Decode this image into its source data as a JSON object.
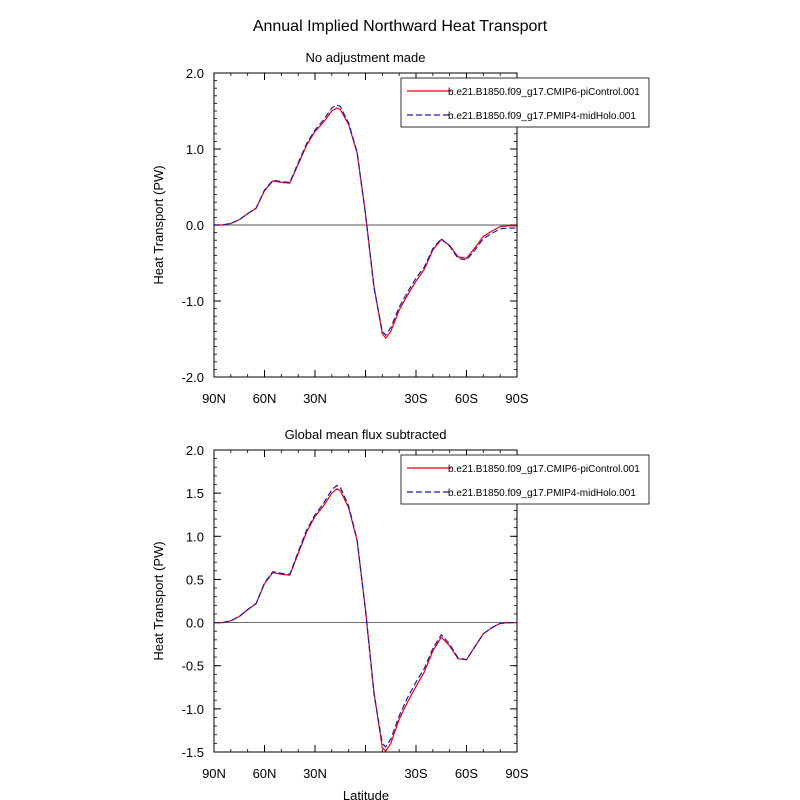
{
  "figure": {
    "title": "Annual Implied Northward Heat Transport",
    "series_colors": {
      "picontrol": "#e8000b",
      "midholo": "#1a1ab3"
    },
    "latitude_axis_label": "Latitude"
  },
  "chart_data": [
    {
      "type": "line",
      "title": "No adjustment made",
      "xlabel": "",
      "ylabel": "Heat Transport (PW)",
      "xlim": [
        90,
        -90
      ],
      "ylim": [
        -2.0,
        2.0
      ],
      "yticks": [
        -2.0,
        -1.0,
        0.0,
        1.0,
        2.0
      ],
      "ytick_labels": [
        "-2.0",
        "-1.0",
        "0.0",
        "1.0",
        "2.0"
      ],
      "xticks": [
        90,
        60,
        30,
        0,
        -30,
        -60,
        -90
      ],
      "xtick_labels": [
        "90N",
        "60N",
        "30N",
        "",
        "30S",
        "60S",
        "90S"
      ],
      "reference_line": 0,
      "legend_position": "top-right",
      "x": [
        90,
        85,
        80,
        75,
        70,
        65,
        60,
        55,
        50,
        45,
        40,
        35,
        30,
        25,
        20,
        17,
        15,
        10,
        5,
        0,
        -5,
        -10,
        -12,
        -15,
        -20,
        -25,
        -30,
        -35,
        -40,
        -45,
        -50,
        -55,
        -60,
        -65,
        -70,
        -75,
        -80,
        -85,
        -90
      ],
      "series": [
        {
          "name": "b.e21.B1850.f09_g17.CMIP6-piControl.001",
          "color": "#e8000b",
          "dash": "solid",
          "values": [
            0.0,
            0.0,
            0.02,
            0.07,
            0.15,
            0.22,
            0.45,
            0.58,
            0.56,
            0.55,
            0.8,
            1.05,
            1.23,
            1.35,
            1.5,
            1.54,
            1.52,
            1.32,
            0.95,
            0.15,
            -0.8,
            -1.43,
            -1.49,
            -1.4,
            -1.12,
            -0.92,
            -0.74,
            -0.58,
            -0.33,
            -0.19,
            -0.27,
            -0.42,
            -0.44,
            -0.3,
            -0.15,
            -0.08,
            -0.02,
            -0.01,
            -0.01
          ]
        },
        {
          "name": "b.e21.B1850.f09_g17.PMIP4-midHolo.001",
          "color": "#1a1ab3",
          "dash": "dashed",
          "values": [
            0.0,
            0.0,
            0.02,
            0.07,
            0.15,
            0.22,
            0.46,
            0.59,
            0.57,
            0.56,
            0.82,
            1.07,
            1.25,
            1.38,
            1.54,
            1.58,
            1.56,
            1.34,
            0.96,
            0.14,
            -0.82,
            -1.4,
            -1.45,
            -1.35,
            -1.08,
            -0.88,
            -0.7,
            -0.55,
            -0.31,
            -0.18,
            -0.28,
            -0.44,
            -0.46,
            -0.33,
            -0.18,
            -0.11,
            -0.05,
            -0.04,
            -0.04
          ]
        }
      ]
    },
    {
      "type": "line",
      "title": "Global mean flux subtracted",
      "xlabel": "Latitude",
      "ylabel": "Heat Transport (PW)",
      "xlim": [
        90,
        -90
      ],
      "ylim": [
        -1.5,
        2.0
      ],
      "yticks": [
        -1.5,
        -1.0,
        -0.5,
        0.0,
        0.5,
        1.0,
        1.5,
        2.0
      ],
      "ytick_labels": [
        "-1.5",
        "-1.0",
        "-0.5",
        "0.0",
        "0.5",
        "1.0",
        "1.5",
        "2.0"
      ],
      "xticks": [
        90,
        60,
        30,
        0,
        -30,
        -60,
        -90
      ],
      "xtick_labels": [
        "90N",
        "60N",
        "30N",
        "",
        "30S",
        "60S",
        "90S"
      ],
      "reference_line": 0,
      "legend_position": "top-right",
      "x": [
        90,
        85,
        80,
        75,
        70,
        65,
        60,
        55,
        50,
        45,
        40,
        35,
        30,
        25,
        20,
        17,
        15,
        10,
        5,
        0,
        -5,
        -10,
        -12,
        -15,
        -20,
        -25,
        -30,
        -35,
        -40,
        -45,
        -50,
        -55,
        -60,
        -65,
        -70,
        -75,
        -80,
        -85,
        -90
      ],
      "series": [
        {
          "name": "b.e21.B1850.f09_g17.CMIP6-piControl.001",
          "color": "#e8000b",
          "dash": "solid",
          "values": [
            0.0,
            0.0,
            0.02,
            0.07,
            0.15,
            0.22,
            0.45,
            0.58,
            0.56,
            0.55,
            0.8,
            1.05,
            1.23,
            1.35,
            1.5,
            1.55,
            1.53,
            1.33,
            0.95,
            0.15,
            -0.8,
            -1.45,
            -1.49,
            -1.4,
            -1.12,
            -0.92,
            -0.74,
            -0.57,
            -0.33,
            -0.17,
            -0.27,
            -0.42,
            -0.43,
            -0.28,
            -0.13,
            -0.06,
            -0.01,
            0.0,
            0.0
          ]
        },
        {
          "name": "b.e21.B1850.f09_g17.PMIP4-midHolo.001",
          "color": "#1a1ab3",
          "dash": "dashed",
          "values": [
            0.0,
            0.0,
            0.02,
            0.07,
            0.15,
            0.22,
            0.46,
            0.59,
            0.57,
            0.56,
            0.82,
            1.07,
            1.25,
            1.38,
            1.54,
            1.59,
            1.57,
            1.35,
            0.96,
            0.14,
            -0.82,
            -1.4,
            -1.44,
            -1.35,
            -1.08,
            -0.87,
            -0.69,
            -0.53,
            -0.3,
            -0.14,
            -0.25,
            -0.41,
            -0.43,
            -0.28,
            -0.13,
            -0.06,
            -0.01,
            0.0,
            0.0
          ]
        }
      ]
    }
  ]
}
